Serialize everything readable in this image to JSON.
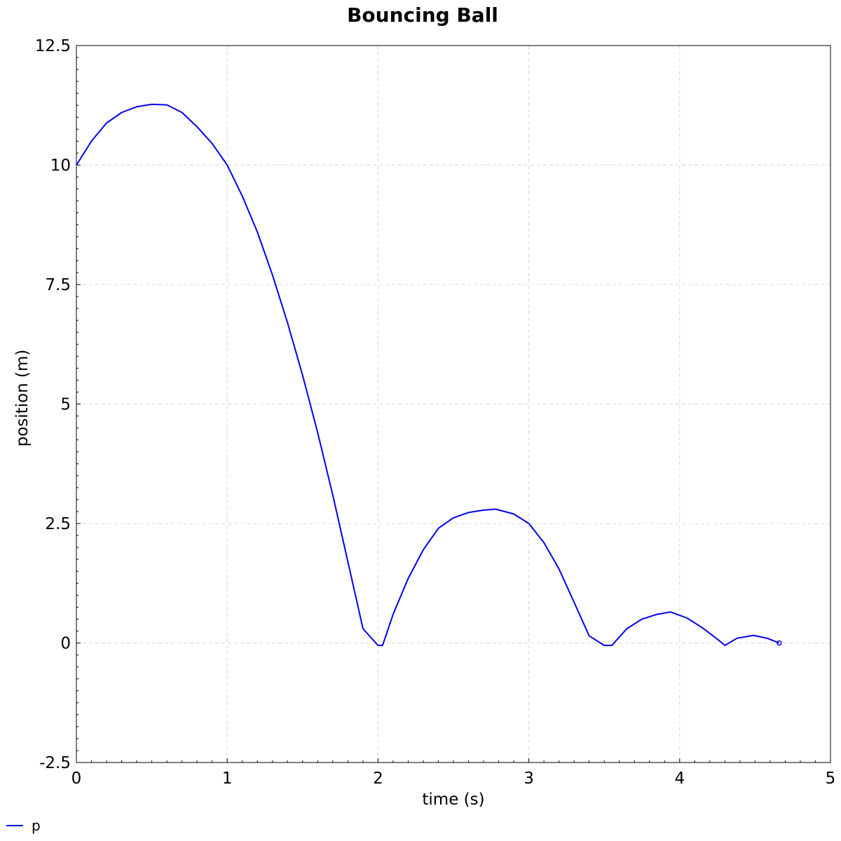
{
  "chart_data": {
    "type": "line",
    "title": "Bouncing Ball",
    "xlabel": "time (s)",
    "ylabel": "position (m)",
    "xlim": [
      0,
      5
    ],
    "ylim": [
      -2.5,
      12.5
    ],
    "xticks": [
      0,
      1,
      2,
      3,
      4,
      5
    ],
    "xtick_labels": [
      "0",
      "1",
      "2",
      "3",
      "4",
      "5"
    ],
    "yticks": [
      -2.5,
      0,
      2.5,
      5,
      7.5,
      10,
      12.5
    ],
    "ytick_labels": [
      "-2.5",
      "0",
      "2.5",
      "5",
      "7.5",
      "10",
      "12.5"
    ],
    "grid": true,
    "legend_position": "bottom-left",
    "series": [
      {
        "name": "p",
        "color": "#0000ee",
        "end_marker": "open-circle",
        "x": [
          0,
          0.1,
          0.2,
          0.3,
          0.4,
          0.5,
          0.6,
          0.7,
          0.8,
          0.9,
          1.0,
          1.1,
          1.2,
          1.3,
          1.4,
          1.5,
          1.6,
          1.7,
          1.8,
          1.9,
          2.0,
          2.03,
          2.1,
          2.2,
          2.3,
          2.4,
          2.5,
          2.6,
          2.7,
          2.78,
          2.9,
          3.0,
          3.1,
          3.2,
          3.3,
          3.4,
          3.5,
          3.55,
          3.65,
          3.75,
          3.85,
          3.94,
          4.05,
          4.15,
          4.25,
          4.3,
          4.38,
          4.49,
          4.58,
          4.66
        ],
        "y": [
          10.0,
          10.5,
          10.88,
          11.1,
          11.22,
          11.27,
          11.26,
          11.1,
          10.8,
          10.45,
          10.0,
          9.35,
          8.6,
          7.7,
          6.7,
          5.6,
          4.4,
          3.1,
          1.7,
          0.3,
          -0.05,
          -0.05,
          0.6,
          1.35,
          1.95,
          2.4,
          2.62,
          2.73,
          2.78,
          2.8,
          2.7,
          2.5,
          2.1,
          1.55,
          0.85,
          0.15,
          -0.05,
          -0.05,
          0.3,
          0.5,
          0.6,
          0.65,
          0.52,
          0.32,
          0.08,
          -0.05,
          0.1,
          0.16,
          0.1,
          0.0
        ]
      }
    ]
  }
}
